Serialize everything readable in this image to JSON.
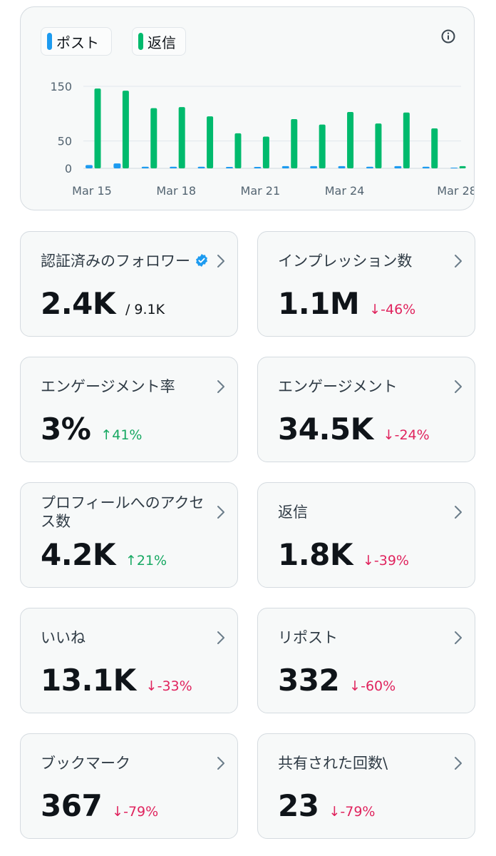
{
  "chart": {
    "legend": [
      {
        "label": "ポスト",
        "color": "#1d9bf0"
      },
      {
        "label": "返信",
        "color": "#00ba6d"
      }
    ],
    "info_icon": "info-icon"
  },
  "chart_data": {
    "type": "bar",
    "categories": [
      "Mar 15",
      "Mar 16",
      "Mar 17",
      "Mar 18",
      "Mar 19",
      "Mar 20",
      "Mar 21",
      "Mar 22",
      "Mar 23",
      "Mar 24",
      "Mar 25",
      "Mar 26",
      "Mar 27",
      "Mar 28"
    ],
    "x_tick_labels": [
      "Mar 15",
      "Mar 18",
      "Mar 21",
      "Mar 24",
      "Mar 28"
    ],
    "y_tick_labels": [
      "0",
      "50",
      "150"
    ],
    "ylim": [
      0,
      150
    ],
    "grid": true,
    "legend_position": "top-left",
    "series": [
      {
        "name": "ポスト",
        "color": "#1d9bf0",
        "values": [
          6,
          9,
          3,
          3,
          3,
          1,
          1,
          4,
          4,
          4,
          3,
          4,
          3,
          0
        ]
      },
      {
        "name": "返信",
        "color": "#00ba6d",
        "values": [
          146,
          142,
          110,
          112,
          95,
          64,
          58,
          90,
          80,
          103,
          82,
          102,
          73,
          4
        ]
      }
    ]
  },
  "stats": [
    {
      "label": "認証済みのフォロワー",
      "value": "2.4K",
      "sub": "/ 9.1K",
      "change": "",
      "direction": "",
      "verified": true
    },
    {
      "label": "インプレッション数",
      "value": "1.1M",
      "sub": "",
      "change": "-46%",
      "direction": "down",
      "verified": false
    },
    {
      "label": "エンゲージメント率",
      "value": "3%",
      "sub": "",
      "change": "41%",
      "direction": "up",
      "verified": false
    },
    {
      "label": "エンゲージメント",
      "value": "34.5K",
      "sub": "",
      "change": "-24%",
      "direction": "down",
      "verified": false
    },
    {
      "label": "プロフィールへのアクセス数",
      "value": "4.2K",
      "sub": "",
      "change": "21%",
      "direction": "up",
      "verified": false
    },
    {
      "label": "返信",
      "value": "1.8K",
      "sub": "",
      "change": "-39%",
      "direction": "down",
      "verified": false
    },
    {
      "label": "いいね",
      "value": "13.1K",
      "sub": "",
      "change": "-33%",
      "direction": "down",
      "verified": false
    },
    {
      "label": "リポスト",
      "value": "332",
      "sub": "",
      "change": "-60%",
      "direction": "down",
      "verified": false
    },
    {
      "label": "ブックマーク",
      "value": "367",
      "sub": "",
      "change": "-79%",
      "direction": "down",
      "verified": false
    },
    {
      "label": "共有された回数\\",
      "value": "23",
      "sub": "",
      "change": "-79%",
      "direction": "down",
      "verified": false
    }
  ]
}
